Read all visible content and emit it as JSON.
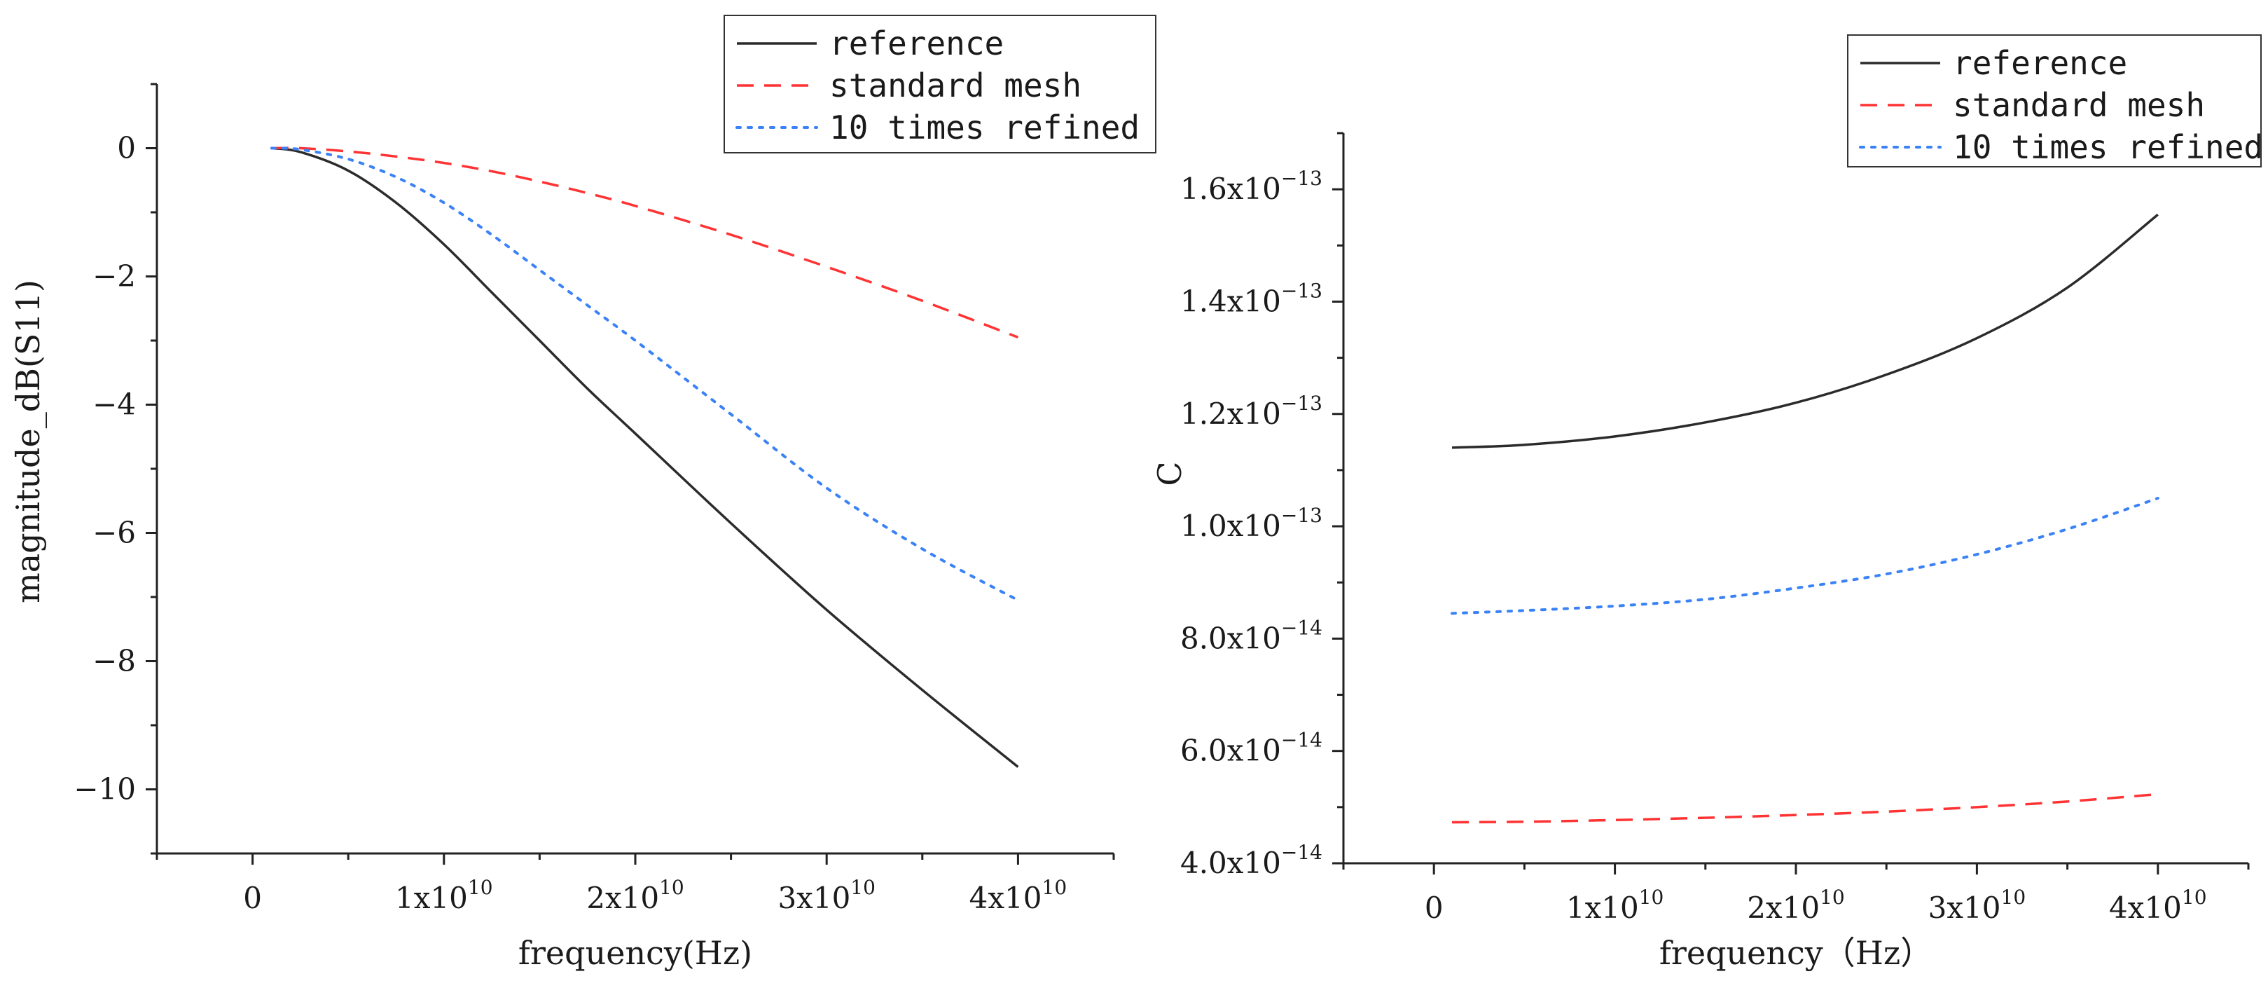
{
  "chart_data": [
    {
      "type": "line",
      "title": "",
      "xlabel": "frequency(Hz)",
      "ylabel": "magnitude_dB(S11)",
      "xlim": [
        -5000000000.0,
        45000000000.0
      ],
      "ylim": [
        -11,
        1
      ],
      "xticks": [
        {
          "value": 0,
          "mant": "0",
          "exp": ""
        },
        {
          "value": 10000000000.0,
          "mant": "1x10",
          "exp": "10"
        },
        {
          "value": 20000000000.0,
          "mant": "2x10",
          "exp": "10"
        },
        {
          "value": 30000000000.0,
          "mant": "3x10",
          "exp": "10"
        },
        {
          "value": 40000000000.0,
          "mant": "4x10",
          "exp": "10"
        }
      ],
      "yticks": [
        {
          "value": 0,
          "label": "0"
        },
        {
          "value": -2,
          "label": "−2"
        },
        {
          "value": -4,
          "label": "−4"
        },
        {
          "value": -6,
          "label": "−6"
        },
        {
          "value": -8,
          "label": "−8"
        },
        {
          "value": -10,
          "label": "−10"
        }
      ],
      "legend_position": "top-right",
      "x": [
        1000000000.0,
        2500000000.0,
        5000000000.0,
        7500000000.0,
        10000000000.0,
        12500000000.0,
        15000000000.0,
        17500000000.0,
        20000000000.0,
        25000000000.0,
        30000000000.0,
        35000000000.0,
        40000000000.0
      ],
      "series": [
        {
          "name": "reference",
          "color": "#2b2b2b",
          "dash": "solid",
          "values": [
            0,
            -0.06,
            -0.35,
            -0.85,
            -1.5,
            -2.25,
            -3.0,
            -3.75,
            -4.45,
            -5.85,
            -7.2,
            -8.45,
            -9.65
          ]
        },
        {
          "name": "standard mesh",
          "color": "#ff3333",
          "dash": "dashed",
          "values": [
            0,
            0,
            -0.05,
            -0.13,
            -0.23,
            -0.36,
            -0.52,
            -0.7,
            -0.9,
            -1.35,
            -1.85,
            -2.38,
            -2.95
          ]
        },
        {
          "name": "10 times refined",
          "color": "#3b82f6",
          "dash": "dotted",
          "values": [
            0,
            -0.02,
            -0.17,
            -0.45,
            -0.85,
            -1.35,
            -1.9,
            -2.45,
            -3.0,
            -4.15,
            -5.3,
            -6.25,
            -7.05
          ]
        }
      ]
    },
    {
      "type": "line",
      "title": "",
      "xlabel": "frequency（Hz）",
      "ylabel": "C",
      "xlim": [
        -5000000000.0,
        45000000000.0
      ],
      "ylim": [
        4e-14,
        1.7e-13
      ],
      "xticks": [
        {
          "value": 0,
          "mant": "0",
          "exp": ""
        },
        {
          "value": 10000000000.0,
          "mant": "1x10",
          "exp": "10"
        },
        {
          "value": 20000000000.0,
          "mant": "2x10",
          "exp": "10"
        },
        {
          "value": 30000000000.0,
          "mant": "3x10",
          "exp": "10"
        },
        {
          "value": 40000000000.0,
          "mant": "4x10",
          "exp": "10"
        }
      ],
      "yticks": [
        {
          "value": 4e-14,
          "mant": "4.0x10",
          "exp": "−14"
        },
        {
          "value": 6e-14,
          "mant": "6.0x10",
          "exp": "−14"
        },
        {
          "value": 8e-14,
          "mant": "8.0x10",
          "exp": "−14"
        },
        {
          "value": 1e-13,
          "mant": "1.0x10",
          "exp": "−13"
        },
        {
          "value": 1.2e-13,
          "mant": "1.2x10",
          "exp": "−13"
        },
        {
          "value": 1.4e-13,
          "mant": "1.4x10",
          "exp": "−13"
        },
        {
          "value": 1.6e-13,
          "mant": "1.6x10",
          "exp": "−13"
        }
      ],
      "legend_position": "top-right",
      "x": [
        1000000000.0,
        5000000000.0,
        10000000000.0,
        15000000000.0,
        20000000000.0,
        25000000000.0,
        30000000000.0,
        35000000000.0,
        40000000000.0
      ],
      "series": [
        {
          "name": "reference",
          "color": "#2b2b2b",
          "dash": "solid",
          "values": [
            1.14e-13,
            1.145e-13,
            1.16e-13,
            1.185e-13,
            1.22e-13,
            1.27e-13,
            1.335e-13,
            1.425e-13,
            1.555e-13
          ]
        },
        {
          "name": "standard mesh",
          "color": "#ff3333",
          "dash": "dashed",
          "values": [
            4.73e-14,
            4.74e-14,
            4.77e-14,
            4.81e-14,
            4.86e-14,
            4.92e-14,
            5e-14,
            5.1e-14,
            5.23e-14
          ]
        },
        {
          "name": "10 times refined",
          "color": "#3b82f6",
          "dash": "dotted",
          "values": [
            8.45e-14,
            8.5e-14,
            8.58e-14,
            8.7e-14,
            8.9e-14,
            9.15e-14,
            9.5e-14,
            9.95e-14,
            1.05e-13
          ]
        }
      ]
    }
  ]
}
